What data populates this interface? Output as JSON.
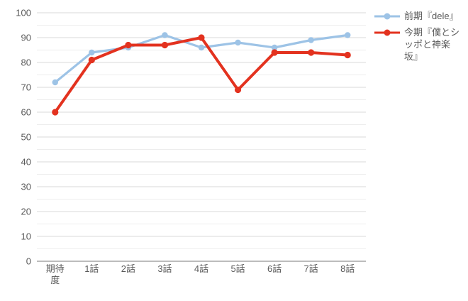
{
  "chart_data": {
    "type": "line",
    "title": "",
    "xlabel": "",
    "ylabel": "",
    "categories": [
      "期待度",
      "1話",
      "2話",
      "3話",
      "4話",
      "5話",
      "6話",
      "7話",
      "8話"
    ],
    "tick_lines": [
      [
        "期待",
        "度"
      ],
      [
        "1話"
      ],
      [
        "2話"
      ],
      [
        "3話"
      ],
      [
        "4話"
      ],
      [
        "5話"
      ],
      [
        "6話"
      ],
      [
        "7話"
      ],
      [
        "8話"
      ]
    ],
    "series": [
      {
        "name": "前期『dele』",
        "name_lines": [
          "前期『dele』"
        ],
        "color": "#9DC3E6",
        "values": [
          72,
          84,
          86,
          91,
          86,
          88,
          86,
          89,
          91
        ]
      },
      {
        "name": "今期『僕とシッポと神楽坂』",
        "name_lines": [
          "今期『僕とシ",
          "ッポと神楽",
          "坂』"
        ],
        "color": "#E3321F",
        "values": [
          60,
          81,
          87,
          87,
          90,
          69,
          84,
          84,
          83
        ]
      }
    ],
    "ylim": [
      0,
      100
    ],
    "y_tick_step": 10,
    "y_minor_step": 5,
    "grid": true,
    "legend_position": "right"
  },
  "colors": {
    "grid_major": "#D9D9D9",
    "grid_minor": "#EDEDED",
    "axis_line": "#A6A6A6",
    "tick_text": "#595959",
    "background": "#FFFFFF"
  }
}
